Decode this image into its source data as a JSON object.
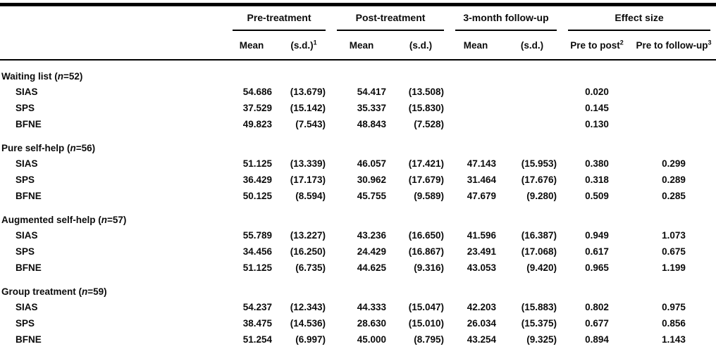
{
  "table": {
    "groups": [
      {
        "label": "Pre-treatment",
        "sub": [
          {
            "text": "Mean"
          },
          {
            "text": "(s.d.)",
            "sup": "1"
          }
        ]
      },
      {
        "label": "Post-treatment",
        "sub": [
          {
            "text": "Mean"
          },
          {
            "text": "(s.d.)"
          }
        ]
      },
      {
        "label": "3-month follow-up",
        "sub": [
          {
            "text": "Mean"
          },
          {
            "text": "(s.d.)"
          }
        ]
      },
      {
        "label": "Effect size",
        "sub": [
          {
            "text": "Pre to post",
            "sup": "2"
          },
          {
            "text": "Pre to follow-up",
            "sup": "3"
          }
        ]
      }
    ],
    "sections": [
      {
        "label_pre": "Waiting list (",
        "label_n": "n",
        "label_post": "=52)",
        "rows": [
          {
            "measure": "SIAS",
            "cells": [
              "54.686",
              "(13.679)",
              "54.417",
              "(13.508)",
              "",
              "",
              "0.020",
              ""
            ]
          },
          {
            "measure": "SPS",
            "cells": [
              "37.529",
              "(15.142)",
              "35.337",
              "(15.830)",
              "",
              "",
              "0.145",
              ""
            ]
          },
          {
            "measure": "BFNE",
            "cells": [
              "49.823",
              "(7.543)",
              "48.843",
              "(7.528)",
              "",
              "",
              "0.130",
              ""
            ]
          }
        ]
      },
      {
        "label_pre": "Pure self-help (",
        "label_n": "n",
        "label_post": "=56)",
        "rows": [
          {
            "measure": "SIAS",
            "cells": [
              "51.125",
              "(13.339)",
              "46.057",
              "(17.421)",
              "47.143",
              "(15.953)",
              "0.380",
              "0.299"
            ]
          },
          {
            "measure": "SPS",
            "cells": [
              "36.429",
              "(17.173)",
              "30.962",
              "(17.679)",
              "31.464",
              "(17.676)",
              "0.318",
              "0.289"
            ]
          },
          {
            "measure": "BFNE",
            "cells": [
              "50.125",
              "(8.594)",
              "45.755",
              "(9.589)",
              "47.679",
              "(9.280)",
              "0.509",
              "0.285"
            ]
          }
        ]
      },
      {
        "label_pre": "Augmented self-help (",
        "label_n": "n",
        "label_post": "=57)",
        "rows": [
          {
            "measure": "SIAS",
            "cells": [
              "55.789",
              "(13.227)",
              "43.236",
              "(16.650)",
              "41.596",
              "(16.387)",
              "0.949",
              "1.073"
            ]
          },
          {
            "measure": "SPS",
            "cells": [
              "34.456",
              "(16.250)",
              "24.429",
              "(16.867)",
              "23.491",
              "(17.068)",
              "0.617",
              "0.675"
            ]
          },
          {
            "measure": "BFNE",
            "cells": [
              "51.125",
              "(6.735)",
              "44.625",
              "(9.316)",
              "43.053",
              "(9.420)",
              "0.965",
              "1.199"
            ]
          }
        ]
      },
      {
        "label_pre": "Group treatment (",
        "label_n": "n",
        "label_post": "=59)",
        "rows": [
          {
            "measure": "SIAS",
            "cells": [
              "54.237",
              "(12.343)",
              "44.333",
              "(15.047)",
              "42.203",
              "(15.883)",
              "0.802",
              "0.975"
            ]
          },
          {
            "measure": "SPS",
            "cells": [
              "38.475",
              "(14.536)",
              "28.630",
              "(15.010)",
              "26.034",
              "(15.375)",
              "0.677",
              "0.856"
            ]
          },
          {
            "measure": "BFNE",
            "cells": [
              "51.254",
              "(6.997)",
              "45.000",
              "(8.795)",
              "43.254",
              "(9.325)",
              "0.894",
              "1.143"
            ]
          }
        ]
      }
    ]
  }
}
